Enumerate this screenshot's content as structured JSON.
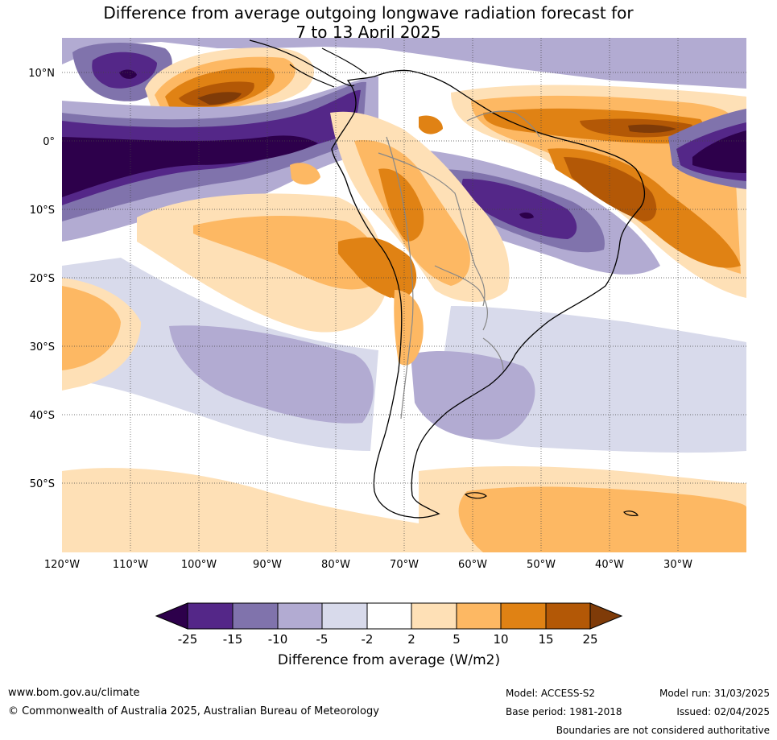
{
  "title_line1": "Difference from average outgoing longwave radiation forecast for",
  "title_line2": "7 to 13 April 2025",
  "lat_labels": [
    "10°N",
    "0°",
    "10°S",
    "20°S",
    "30°S",
    "40°S",
    "50°S"
  ],
  "lon_labels": [
    "120°W",
    "110°W",
    "100°W",
    "90°W",
    "80°W",
    "70°W",
    "60°W",
    "50°W",
    "40°W",
    "30°W"
  ],
  "colorbar": {
    "ticks": [
      "-25",
      "-15",
      "-10",
      "-5",
      "-2",
      "2",
      "5",
      "10",
      "15",
      "25"
    ],
    "colors": [
      "#2d004b",
      "#542788",
      "#8073ac",
      "#b2abd2",
      "#d8daeb",
      "#ffffff",
      "#fee0b6",
      "#fdb863",
      "#e08214",
      "#b35806",
      "#7f3b08"
    ],
    "title": "Difference from average (W/m2)"
  },
  "footer": {
    "url": "www.bom.gov.au/climate",
    "copyright": "© Commonwealth of Australia 2025, Australian Bureau of Meteorology",
    "model": "Model: ACCESS-S2",
    "base_period": "Base period: 1981-2018",
    "model_run": "Model run: 31/03/2025",
    "issued": "Issued: 02/04/2025",
    "disclaimer": "Boundaries are not considered authoritative"
  }
}
